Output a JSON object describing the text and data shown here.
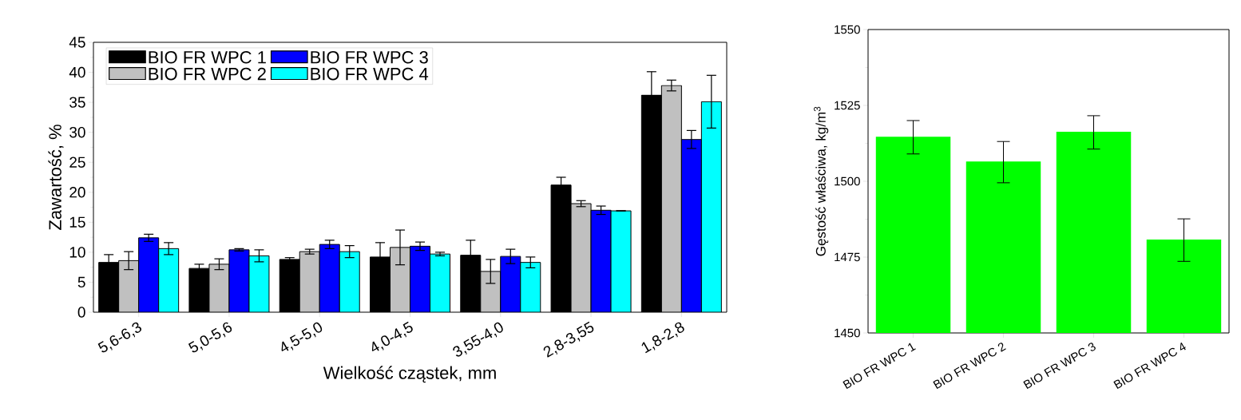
{
  "chart_data": [
    {
      "type": "bar",
      "xlabel": "Wielkość cząstek, mm",
      "ylabel": "Zawartość, %",
      "categories": [
        "5,6-6,3",
        "5,0-5,6",
        "4,5-5,0",
        "4,0-4,5",
        "3,55-4,0",
        "2,8-3,55",
        "1,8-2,8"
      ],
      "series": [
        {
          "name": "BIO FR WPC 1",
          "color": "#000000",
          "values": [
            8.3,
            7.3,
            8.8,
            9.2,
            9.5,
            21.2,
            36.2
          ],
          "errors": [
            1.3,
            0.7,
            0.3,
            2.4,
            2.5,
            1.3,
            3.9
          ]
        },
        {
          "name": "BIO FR WPC 2",
          "color": "#c0c0c0",
          "values": [
            8.6,
            8.0,
            10.1,
            10.8,
            6.8,
            18.1,
            37.8
          ],
          "errors": [
            1.5,
            0.9,
            0.4,
            2.9,
            2.0,
            0.5,
            0.9
          ]
        },
        {
          "name": "BIO FR WPC 3",
          "color": "#0000ff",
          "values": [
            12.4,
            10.4,
            11.3,
            11.0,
            9.3,
            17.0,
            28.8
          ],
          "errors": [
            0.6,
            0.2,
            0.7,
            0.7,
            1.2,
            0.7,
            1.5
          ]
        },
        {
          "name": "BIO FR WPC 4",
          "color": "#00ffff",
          "values": [
            10.6,
            9.4,
            10.1,
            9.7,
            8.3,
            16.9,
            35.1
          ],
          "errors": [
            1.0,
            1.0,
            1.0,
            0.3,
            0.9,
            0,
            4.4
          ]
        }
      ],
      "ylim": [
        0,
        45
      ],
      "yticks": [
        0,
        5,
        10,
        15,
        20,
        25,
        30,
        35,
        40,
        45
      ],
      "legend": "top left"
    },
    {
      "type": "bar",
      "ylabel": "Gęstość właściwa, kg/m$^{3}$",
      "categories": [
        "BIO FR WPC 1",
        "BIO FR WPC 2",
        "BIO FR WPC 3",
        "BIO FR WPC 4"
      ],
      "values": [
        1514.5,
        1506.3,
        1516.1,
        1480.6
      ],
      "errors": [
        5.5,
        6.8,
        5.5,
        7.0
      ],
      "color": "#00ff00",
      "ylim": [
        1450,
        1550
      ],
      "yticks": [
        1450,
        1475,
        1500,
        1525,
        1550
      ]
    }
  ]
}
